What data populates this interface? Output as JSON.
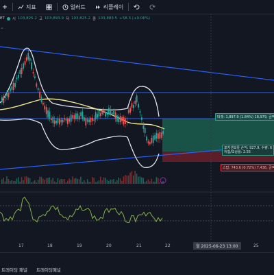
{
  "toolbar": {
    "items": [
      {
        "label": "지표",
        "icon": "indicators-icon"
      },
      {
        "label": "",
        "icon": "templates-icon"
      },
      {
        "label": "얼러트",
        "icon": "alert-clock-icon"
      },
      {
        "label": "리플레이",
        "icon": "replay-icon"
      }
    ],
    "extra_icons": [
      "undo-icon",
      "redo-icon"
    ]
  },
  "legend": {
    "symbol_suffix": "ET",
    "open_k": "시",
    "open_v": "103,825.2",
    "high_k": "고",
    "high_v": "103,893.9",
    "low_k": "저",
    "low_v": "103,825.2",
    "close_k": "종",
    "close_v": "103,883.5",
    "change": "+58.3 (+0.06%)"
  },
  "labels": {
    "target": "타겟: 1,897.9 (1.84%) 18,979, 금액:",
    "position_line1": "포지션보유 손익: 927.9, 수량: 6",
    "position_line2": "위험/보상률: 2.55",
    "stop": "스탑: 743.6 (0.72%) 7,436, 금액:"
  },
  "xaxis": {
    "ticks": [
      "17",
      "18",
      "19",
      "20",
      "21",
      "22",
      "25"
    ],
    "cursor_label": "월 2025-06-23   13:00"
  },
  "tabs": [
    "트레이딩 패널",
    "트레이딩패널"
  ],
  "colors": {
    "background": "#131722",
    "bull": "#26a69a",
    "bear": "#ef5350",
    "trendline": "#2962ff",
    "bollinger": "#e0e3eb",
    "ma": "#f0e68c",
    "oscillator": "#8ab24c",
    "target_zone": "#1b5e4f",
    "stop_zone": "#6b1f2a"
  }
}
